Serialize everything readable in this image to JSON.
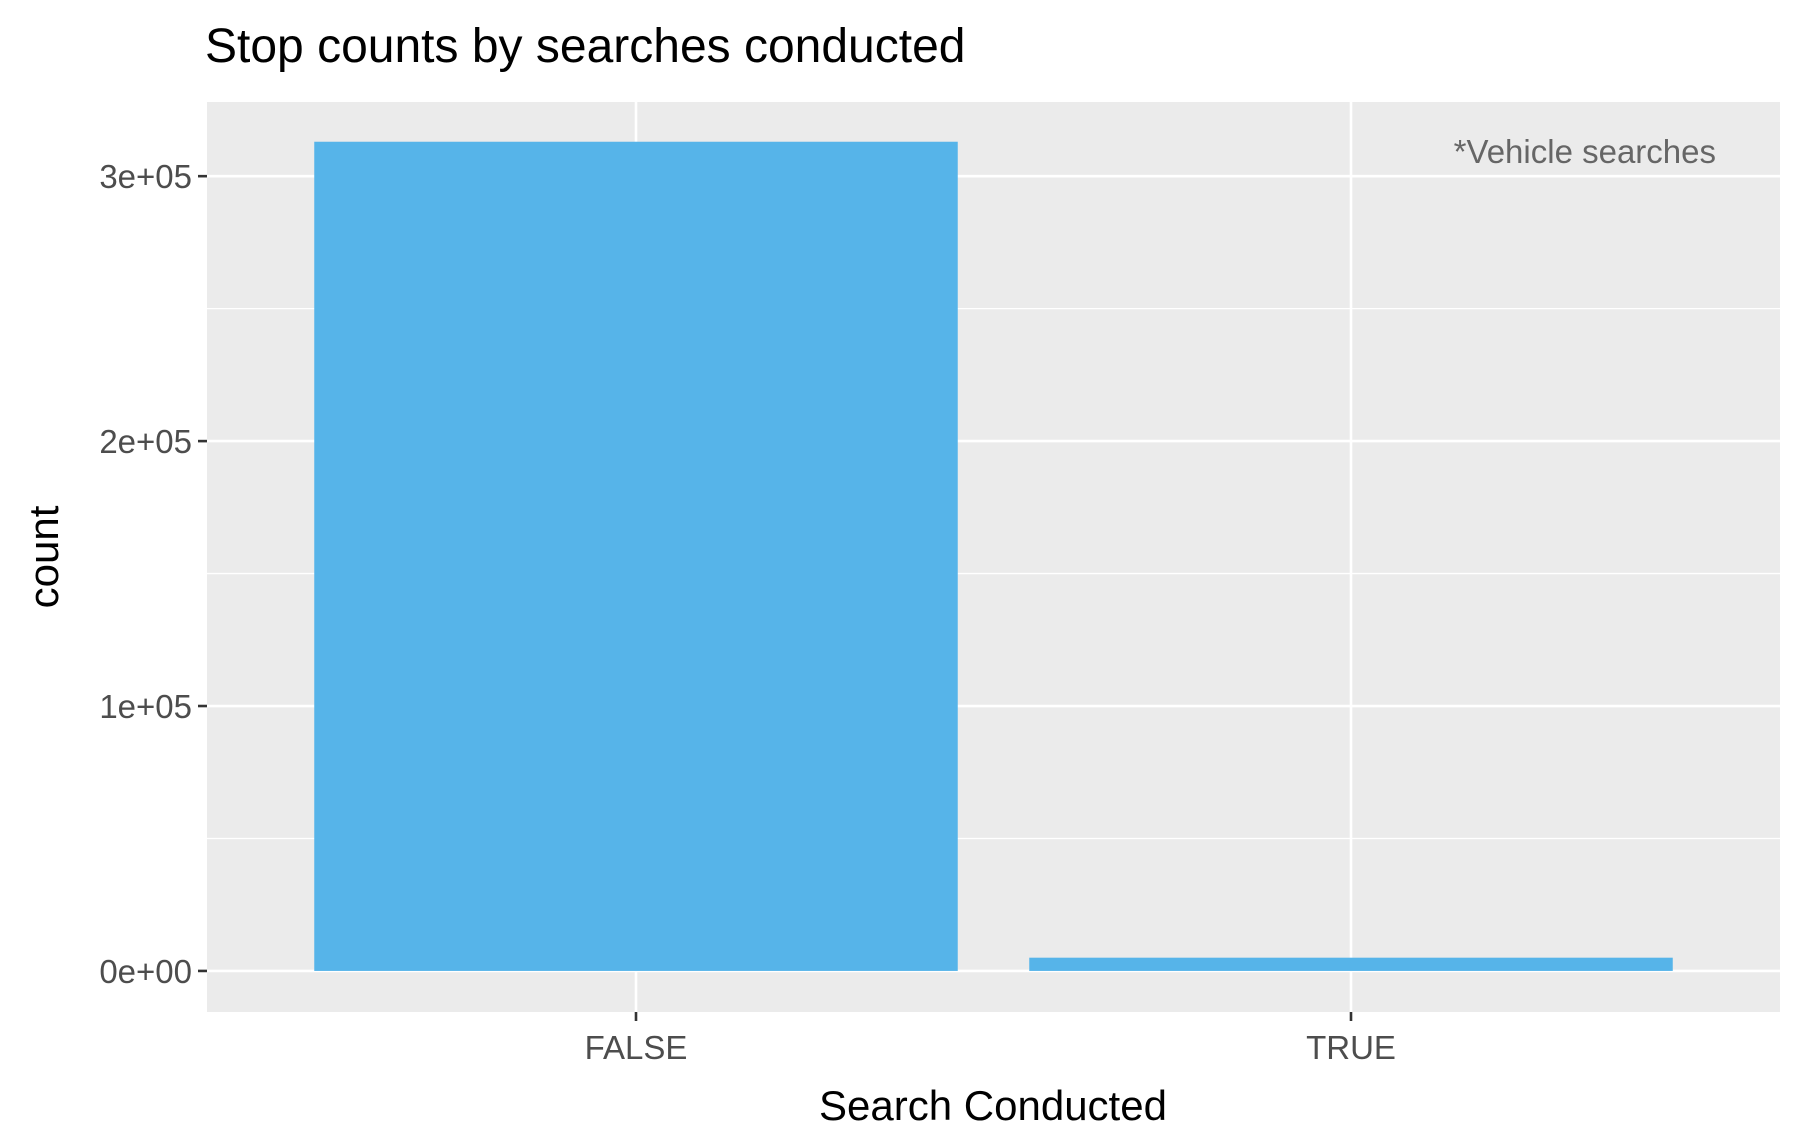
{
  "chart_data": {
    "type": "bar",
    "title": "Stop counts by searches conducted",
    "xlabel": "Search Conducted",
    "ylabel": "count",
    "categories": [
      "FALSE",
      "TRUE"
    ],
    "values": [
      313000,
      5000
    ],
    "ylim": [
      -15500,
      328000
    ],
    "yticks": [
      0,
      100000,
      200000,
      300000
    ],
    "ytick_labels": [
      "0e+00",
      "1e+05",
      "2e+05",
      "3e+05"
    ],
    "grid": true,
    "annotation": "*Vehicle searches",
    "colors": {
      "bar": "#56B4E9",
      "panel": "#EBEBEB",
      "grid": "#FFFFFF",
      "tick_text": "#4D4D4D",
      "annotation_text": "#666666"
    }
  }
}
